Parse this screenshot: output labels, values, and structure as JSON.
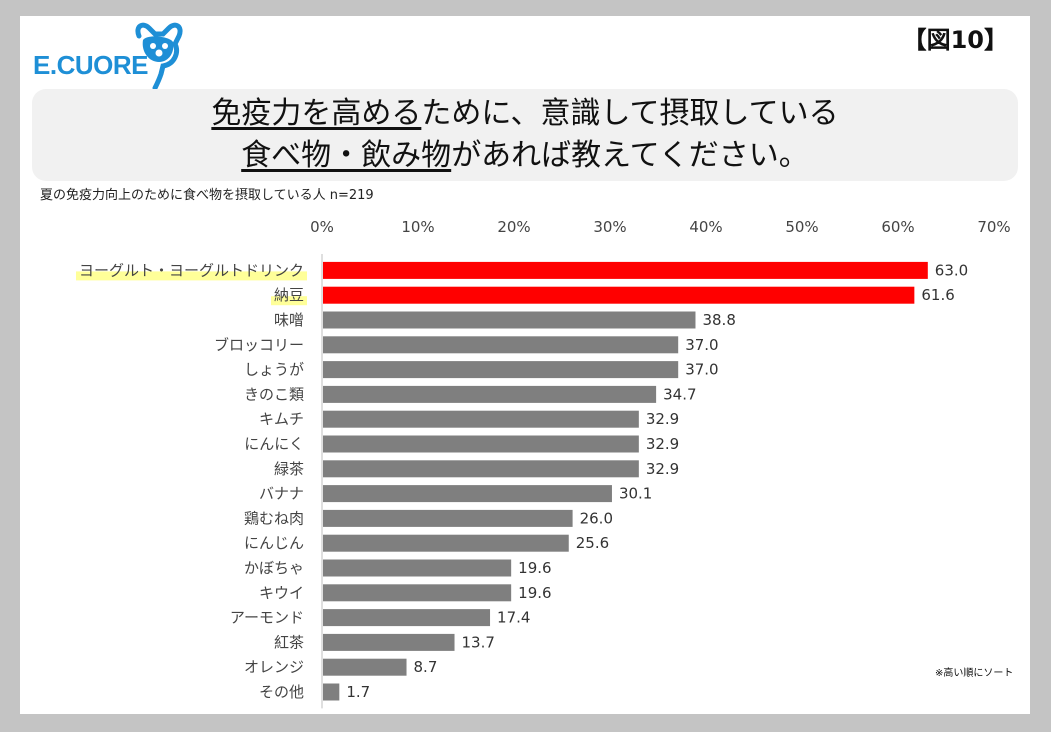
{
  "brand": {
    "logo_text": "E.CUORE"
  },
  "figure_label": "【図10】",
  "title": {
    "line1_underlined": "免疫力を高める",
    "line1_rest": "ために、意識して摂取している",
    "line2_underlined": "食べ物・飲み物",
    "line2_rest": "があれば教えてください。"
  },
  "subtitle": "夏の免疫力向上のために食べ物を摂取している人 n=219",
  "note": "※高い順にソート",
  "colors": {
    "highlight_bar": "#ff0000",
    "bar": "#7f7f7f",
    "label_highlight": "#ffff99"
  },
  "chart_data": {
    "type": "bar",
    "orientation": "horizontal",
    "xlim": [
      0,
      70
    ],
    "ticks": [
      "0%",
      "10%",
      "20%",
      "30%",
      "40%",
      "50%",
      "60%",
      "70%"
    ],
    "tick_values": [
      0,
      10,
      20,
      30,
      40,
      50,
      60,
      70
    ],
    "grid": false,
    "categories": [
      "ヨーグルト・ヨーグルトドリンク",
      "納豆",
      "味噌",
      "ブロッコリー",
      "しょうが",
      "きのこ類",
      "キムチ",
      "にんにく",
      "緑茶",
      "バナナ",
      "鶏むね肉",
      "にんじん",
      "かぼちゃ",
      "キウイ",
      "アーモンド",
      "紅茶",
      "オレンジ",
      "その他"
    ],
    "values": [
      63.0,
      61.6,
      38.8,
      37.0,
      37.0,
      34.7,
      32.9,
      32.9,
      32.9,
      30.1,
      26.0,
      25.6,
      19.6,
      19.6,
      17.4,
      13.7,
      8.7,
      1.7
    ],
    "value_labels": [
      "63.0",
      "61.6",
      "38.8",
      "37.0",
      "37.0",
      "34.7",
      "32.9",
      "32.9",
      "32.9",
      "30.1",
      "26.0",
      "25.6",
      "19.6",
      "19.6",
      "17.4",
      "13.7",
      "8.7",
      "1.7"
    ],
    "highlighted": [
      0,
      1
    ]
  }
}
